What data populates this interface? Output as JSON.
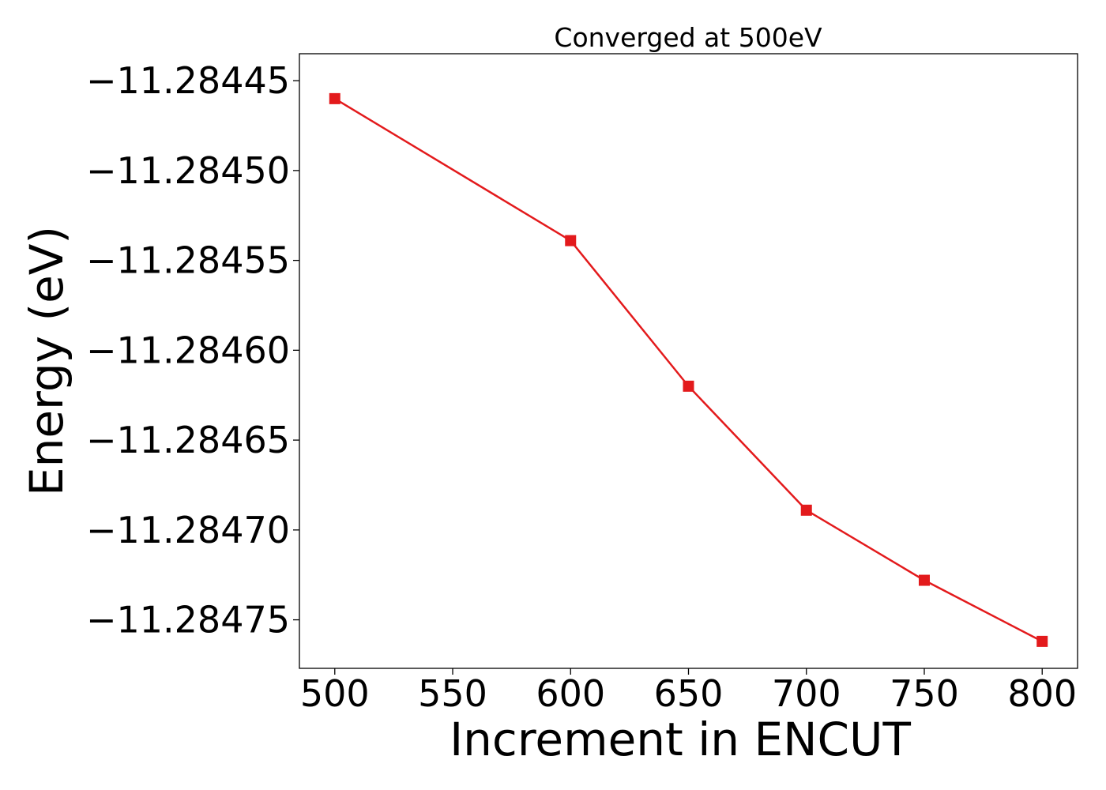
{
  "chart_data": {
    "type": "line",
    "title": "Converged at 500eV",
    "xlabel": "Increment in ENCUT",
    "ylabel": "Energy (eV)",
    "xlim": [
      485,
      815
    ],
    "ylim": [
      -11.284777,
      -11.284435
    ],
    "xticks": [
      500,
      550,
      600,
      650,
      700,
      750,
      800
    ],
    "xtick_labels": [
      "500",
      "550",
      "600",
      "650",
      "700",
      "750",
      "800"
    ],
    "yticks": [
      -11.28445,
      -11.2845,
      -11.28455,
      -11.2846,
      -11.28465,
      -11.2847,
      -11.28475
    ],
    "ytick_labels": [
      "−11.28445",
      "−11.28450",
      "−11.28455",
      "−11.28460",
      "−11.28465",
      "−11.28470",
      "−11.28475"
    ],
    "grid": false,
    "series": [
      {
        "color": "#e31a1c",
        "marker": "square",
        "x": [
          500,
          600,
          650,
          700,
          750,
          800
        ],
        "y": [
          -11.28446,
          -11.284539,
          -11.28462,
          -11.284689,
          -11.284728,
          -11.284762
        ]
      }
    ]
  }
}
